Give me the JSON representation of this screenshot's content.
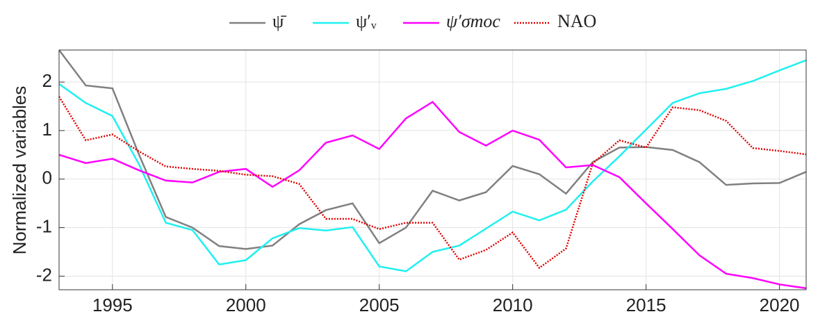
{
  "chart_data": {
    "type": "line",
    "ylabel": "Normalized variables",
    "x": [
      1993,
      1994,
      1995,
      1996,
      1997,
      1998,
      1999,
      2000,
      2001,
      2002,
      2003,
      2004,
      2005,
      2006,
      2007,
      2008,
      2009,
      2010,
      2011,
      2012,
      2013,
      2014,
      2015,
      2016,
      2017,
      2018,
      2019,
      2020,
      2021
    ],
    "series": [
      {
        "name": "ψ̄",
        "color": "#808080",
        "dash": false,
        "values": [
          2.66,
          1.93,
          1.87,
          0.5,
          -0.78,
          -1.0,
          -1.38,
          -1.44,
          -1.37,
          -0.93,
          -0.64,
          -0.5,
          -1.32,
          -1.0,
          -0.24,
          -0.44,
          -0.27,
          0.27,
          0.1,
          -0.3,
          0.35,
          0.65,
          0.66,
          0.6,
          0.35,
          -0.12,
          -0.09,
          -0.08,
          0.15
        ]
      },
      {
        "name": "ψ′ᵥ",
        "color": "#1ff0f0",
        "dash": false,
        "values": [
          1.96,
          1.57,
          1.3,
          0.3,
          -0.9,
          -1.05,
          -1.76,
          -1.67,
          -1.22,
          -1.01,
          -1.06,
          -0.99,
          -1.8,
          -1.9,
          -1.5,
          -1.37,
          -1.02,
          -0.67,
          -0.85,
          -0.63,
          -0.05,
          0.47,
          1.02,
          1.57,
          1.77,
          1.86,
          2.02,
          2.24,
          2.45
        ]
      },
      {
        "name": "ψ′σmoc",
        "color": "#ff00ff",
        "dash": false,
        "values": [
          0.5,
          0.33,
          0.42,
          0.18,
          -0.03,
          -0.07,
          0.15,
          0.21,
          -0.16,
          0.18,
          0.75,
          0.9,
          0.62,
          1.25,
          1.59,
          0.97,
          0.69,
          1.0,
          0.81,
          0.24,
          0.29,
          0.04,
          -0.5,
          -1.03,
          -1.57,
          -1.95,
          -2.04,
          -2.17,
          -2.25
        ]
      },
      {
        "name": "NAO",
        "color": "#e00000",
        "dash": true,
        "values": [
          1.7,
          0.8,
          0.92,
          0.57,
          0.26,
          0.21,
          0.17,
          0.09,
          0.06,
          -0.1,
          -0.82,
          -0.82,
          -1.03,
          -0.9,
          -0.9,
          -1.66,
          -1.46,
          -1.1,
          -1.83,
          -1.43,
          0.32,
          0.8,
          0.65,
          1.48,
          1.42,
          1.2,
          0.64,
          0.58,
          0.51
        ]
      }
    ],
    "xlim": [
      1993,
      2021
    ],
    "xticks": [
      1995,
      2000,
      2005,
      2010,
      2015,
      2020
    ],
    "ylim": [
      -2.28,
      2.66
    ],
    "yticks": [
      -2,
      -1,
      0,
      1,
      2
    ],
    "grid": true,
    "legend": "top"
  }
}
